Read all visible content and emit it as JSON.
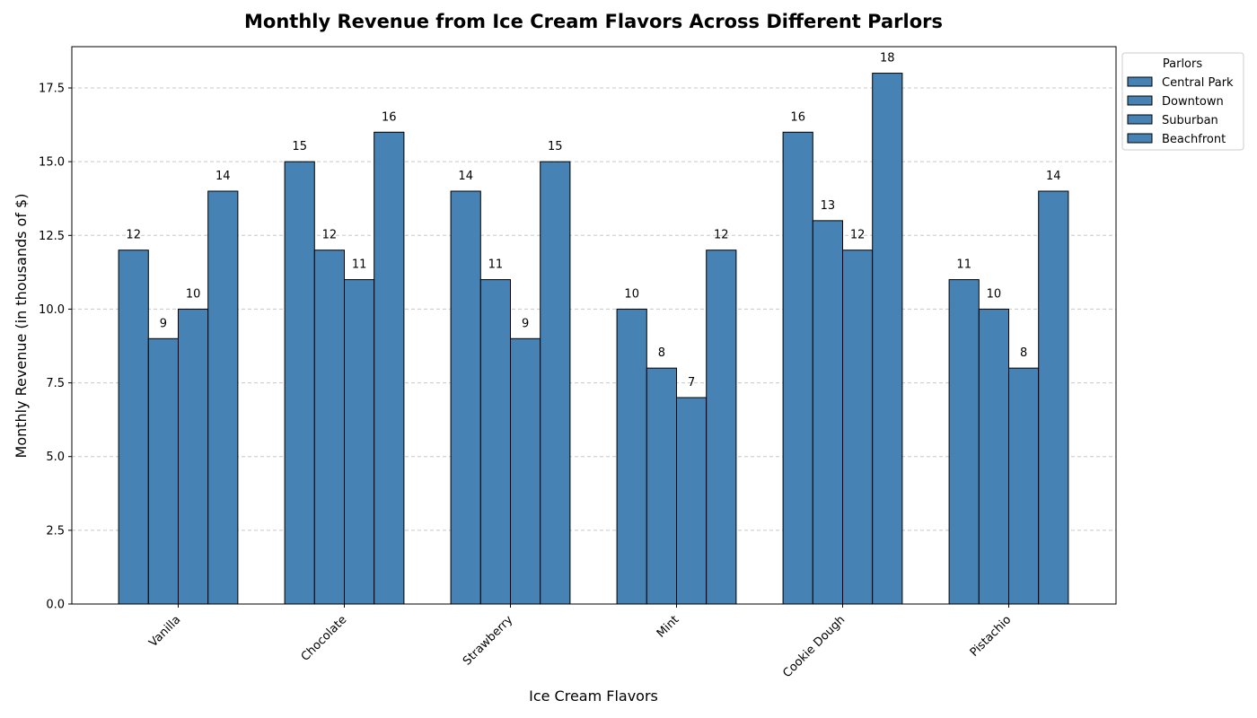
{
  "chart_data": {
    "type": "bar",
    "title": "Monthly Revenue from Ice Cream Flavors Across Different Parlors",
    "xlabel": "Ice Cream Flavors",
    "ylabel": "Monthly Revenue (in thousands of $)",
    "categories": [
      "Vanilla",
      "Chocolate",
      "Strawberry",
      "Mint",
      "Cookie Dough",
      "Pistachio"
    ],
    "series": [
      {
        "name": "Central Park",
        "values": [
          12,
          15,
          14,
          10,
          16,
          11
        ]
      },
      {
        "name": "Downtown",
        "values": [
          9,
          12,
          11,
          8,
          13,
          10
        ]
      },
      {
        "name": "Suburban",
        "values": [
          10,
          11,
          9,
          7,
          12,
          8
        ]
      },
      {
        "name": "Beachfront",
        "values": [
          14,
          16,
          15,
          12,
          18,
          14
        ]
      }
    ],
    "ylim": [
      0,
      18.9
    ],
    "yticks": [
      "0.0",
      "2.5",
      "5.0",
      "7.5",
      "10.0",
      "12.5",
      "15.0",
      "17.5"
    ],
    "grid": true,
    "legend_title": "Parlors",
    "legend_position": "outside-top-right",
    "bar_color": "#4682b4",
    "edge_color": "#000000"
  }
}
